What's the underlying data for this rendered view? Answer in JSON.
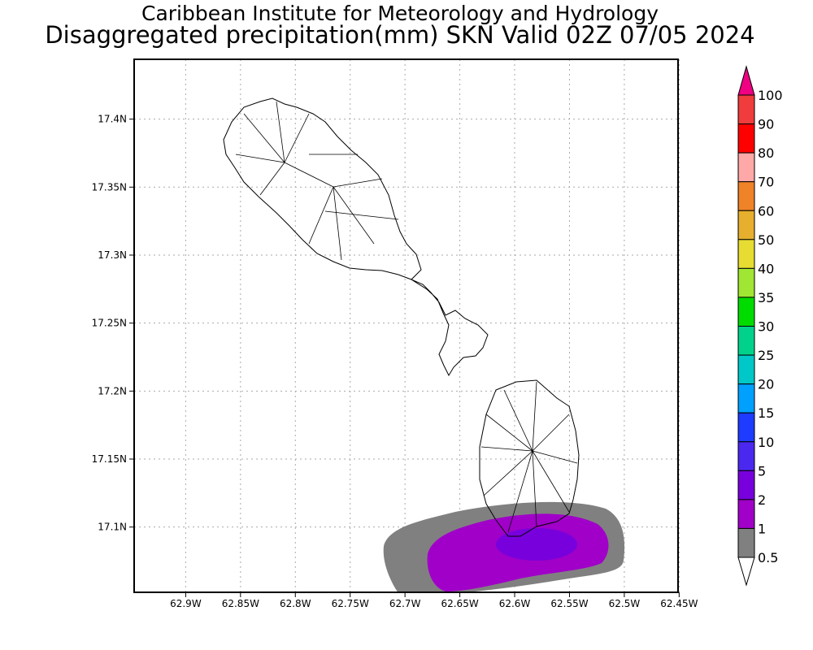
{
  "title": {
    "line1": "Caribbean Institute for Meteorology and Hydrology",
    "line2": "Disaggregated precipitation(mm) SKN Valid 02Z 07/05 2024"
  },
  "axes": {
    "x_ticks": [
      "62.9W",
      "62.85W",
      "62.8W",
      "62.75W",
      "62.7W",
      "62.65W",
      "62.6W",
      "62.55W",
      "62.5W",
      "62.45W"
    ],
    "x_values": [
      -62.9,
      -62.85,
      -62.8,
      -62.75,
      -62.7,
      -62.65,
      -62.6,
      -62.55,
      -62.5,
      -62.45
    ],
    "y_ticks": [
      "17.4N",
      "17.35N",
      "17.3N",
      "17.25N",
      "17.2N",
      "17.15N",
      "17.1N"
    ],
    "y_values": [
      17.4,
      17.35,
      17.3,
      17.25,
      17.2,
      17.15,
      17.1
    ],
    "lon_range": [
      -62.947,
      -62.451
    ],
    "lat_range": [
      17.052,
      17.444
    ]
  },
  "colorbar": {
    "labels": [
      "100",
      "90",
      "80",
      "70",
      "60",
      "50",
      "40",
      "35",
      "30",
      "25",
      "20",
      "15",
      "10",
      "5",
      "2",
      "1",
      "0.5"
    ],
    "colors": [
      "#f03c3c",
      "#ff0000",
      "#ffa8a8",
      "#f08228",
      "#e6af2d",
      "#e6dc32",
      "#a0e632",
      "#00dc00",
      "#00d28c",
      "#00c8c8",
      "#00a0ff",
      "#1e3cff",
      "#4b28f0",
      "#7800dc",
      "#a000c8",
      "#808080"
    ],
    "over_color": "#f00082",
    "under_color": "#ffffff"
  },
  "precip_colors": {
    "gray": "#808080",
    "purple": "#a000c8",
    "violet": "#7800dc"
  }
}
